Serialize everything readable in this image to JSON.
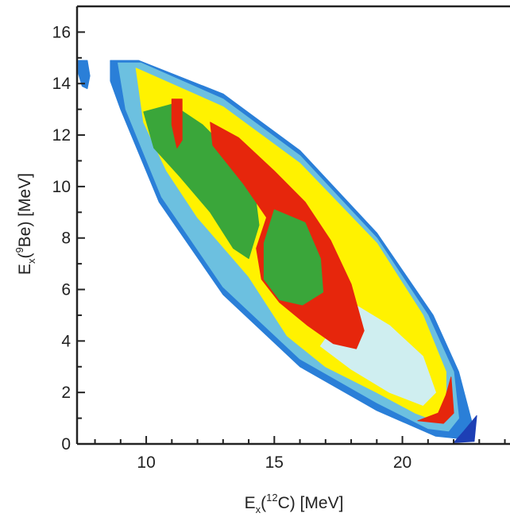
{
  "chart_data": {
    "type": "heatmap",
    "title": "",
    "xlabel": {
      "prefix": "E",
      "sub": "x",
      "open": "(",
      "sup": "12",
      "nucleus": "C",
      "rest": ") [MeV]"
    },
    "ylabel": {
      "prefix": "E",
      "sub": "x",
      "open": "(",
      "sup": "9",
      "nucleus": "Be",
      "rest": ") [MeV]"
    },
    "xlim": [
      7.3,
      24.2
    ],
    "ylim": [
      0,
      17
    ],
    "x_ticks": [
      10,
      15,
      20
    ],
    "y_ticks": [
      0,
      2,
      4,
      6,
      8,
      10,
      12,
      14,
      16
    ],
    "x_tick_labels": [
      "10",
      "15",
      "20"
    ],
    "y_tick_labels": [
      "0",
      "2",
      "4",
      "6",
      "8",
      "10",
      "12",
      "14",
      "16"
    ],
    "colorscale": [
      "#1d3fb5",
      "#2a7fd8",
      "#6cc0e0",
      "#cfeef0",
      "#f5f0a0",
      "#fff200",
      "#ffc000",
      "#ff6a00",
      "#e6260c",
      "#3aa63a"
    ],
    "regions": [
      {
        "name": "outer-envelope-blue",
        "level": 1,
        "polygon": [
          [
            8.6,
            14.9
          ],
          [
            9.7,
            14.9
          ],
          [
            13,
            13.6
          ],
          [
            16,
            11.4
          ],
          [
            19,
            8.2
          ],
          [
            21.2,
            5.0
          ],
          [
            22.2,
            2.8
          ],
          [
            22.7,
            0.9
          ],
          [
            22.3,
            0.2
          ],
          [
            21.3,
            0.3
          ],
          [
            19,
            1.3
          ],
          [
            16,
            3.0
          ],
          [
            13,
            5.8
          ],
          [
            10.5,
            9.4
          ],
          [
            9.0,
            13.0
          ],
          [
            8.6,
            14.1
          ]
        ]
      },
      {
        "name": "cyan-band",
        "level": 2,
        "polygon": [
          [
            8.9,
            14.8
          ],
          [
            9.8,
            14.8
          ],
          [
            13,
            13.4
          ],
          [
            16,
            11.2
          ],
          [
            19,
            8.0
          ],
          [
            21,
            5.0
          ],
          [
            22,
            2.8
          ],
          [
            22.2,
            1.0
          ],
          [
            21.8,
            0.5
          ],
          [
            21,
            0.6
          ],
          [
            19,
            1.6
          ],
          [
            16,
            3.3
          ],
          [
            13,
            6.1
          ],
          [
            10.6,
            9.6
          ],
          [
            9.2,
            13.0
          ]
        ]
      },
      {
        "name": "yellow-body",
        "level": 5,
        "polygon": [
          [
            9.6,
            14.6
          ],
          [
            13,
            13.1
          ],
          [
            16,
            10.9
          ],
          [
            19,
            7.8
          ],
          [
            20.8,
            5.0
          ],
          [
            21.7,
            2.8
          ],
          [
            21.7,
            1.3
          ],
          [
            21.3,
            0.9
          ],
          [
            20.5,
            1.2
          ],
          [
            19,
            2.0
          ],
          [
            17,
            3.0
          ],
          [
            15.5,
            4.2
          ],
          [
            14,
            6.5
          ],
          [
            12,
            8.8
          ],
          [
            10.8,
            10.6
          ],
          [
            9.9,
            12.5
          ]
        ]
      },
      {
        "name": "pale-interior",
        "level": 3,
        "polygon": [
          [
            18,
            5.5
          ],
          [
            19.5,
            4.6
          ],
          [
            20.8,
            3.4
          ],
          [
            21.3,
            2.0
          ],
          [
            20.8,
            1.5
          ],
          [
            19.5,
            2.0
          ],
          [
            18,
            2.9
          ],
          [
            16.8,
            3.8
          ]
        ]
      },
      {
        "name": "green-lobe-upper",
        "level": 9,
        "polygon": [
          [
            9.9,
            12.9
          ],
          [
            11,
            13.2
          ],
          [
            12.2,
            12.4
          ],
          [
            13.4,
            11.2
          ],
          [
            14.2,
            10.1
          ],
          [
            14.4,
            8.5
          ],
          [
            14.0,
            7.2
          ],
          [
            13.4,
            7.6
          ],
          [
            12.5,
            9.0
          ],
          [
            11.3,
            10.4
          ],
          [
            10.3,
            11.5
          ]
        ]
      },
      {
        "name": "red-ridge",
        "level": 8,
        "polygon": [
          [
            12.5,
            12.5
          ],
          [
            13.6,
            11.9
          ],
          [
            15,
            10.6
          ],
          [
            16.2,
            9.4
          ],
          [
            17.2,
            7.9
          ],
          [
            18.0,
            6.2
          ],
          [
            18.5,
            4.4
          ],
          [
            18.2,
            3.7
          ],
          [
            17.3,
            3.9
          ],
          [
            16.3,
            4.6
          ],
          [
            15.2,
            5.5
          ],
          [
            14.5,
            6.4
          ],
          [
            14.3,
            7.6
          ],
          [
            14.7,
            8.8
          ],
          [
            13.8,
            10.1
          ],
          [
            12.6,
            11.6
          ]
        ]
      },
      {
        "name": "green-lobe-lower",
        "level": 9,
        "polygon": [
          [
            15,
            9.1
          ],
          [
            16.2,
            8.6
          ],
          [
            16.8,
            7.2
          ],
          [
            16.9,
            5.9
          ],
          [
            16.1,
            5.4
          ],
          [
            15.2,
            5.6
          ],
          [
            14.6,
            6.4
          ],
          [
            14.6,
            7.8
          ]
        ]
      },
      {
        "name": "red-streak",
        "level": 8,
        "polygon": [
          [
            11.0,
            13.4
          ],
          [
            11.4,
            13.4
          ],
          [
            11.4,
            11.8
          ],
          [
            11.2,
            11.5
          ],
          [
            11.0,
            12.4
          ]
        ]
      },
      {
        "name": "red-edge-bottom",
        "level": 8,
        "polygon": [
          [
            21.9,
            2.6
          ],
          [
            22.0,
            1.2
          ],
          [
            21.6,
            0.8
          ],
          [
            20.6,
            0.9
          ],
          [
            21.4,
            1.2
          ],
          [
            21.7,
            1.9
          ]
        ]
      },
      {
        "name": "blue-edge-tail",
        "level": 0,
        "polygon": [
          [
            22.9,
            1.1
          ],
          [
            22.8,
            0.1
          ],
          [
            22.0,
            0.05
          ],
          [
            22.4,
            0.5
          ]
        ]
      },
      {
        "name": "left-fragment",
        "level": 1,
        "polygon": [
          [
            7.35,
            14.9
          ],
          [
            7.7,
            14.9
          ],
          [
            7.8,
            14.3
          ],
          [
            7.7,
            13.8
          ],
          [
            7.5,
            13.9
          ],
          [
            7.35,
            14.4
          ]
        ]
      }
    ]
  }
}
